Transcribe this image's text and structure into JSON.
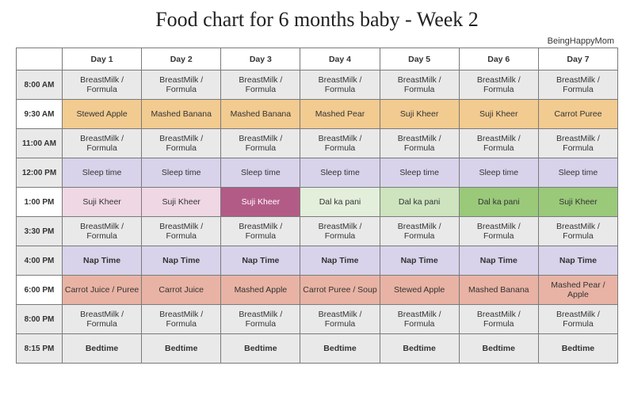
{
  "title": "Food chart for 6 months baby - Week 2",
  "credit": "BeingHappyMom",
  "columns": [
    "",
    "Day 1",
    "Day 2",
    "Day 3",
    "Day 4",
    "Day 5",
    "Day 6",
    "Day 7"
  ],
  "rows": [
    {
      "time": "8:00 AM",
      "timeClass": "time-gray",
      "cells": [
        {
          "v": "BreastMilk / Formula",
          "c": "c-gray"
        },
        {
          "v": "BreastMilk / Formula",
          "c": "c-gray"
        },
        {
          "v": "BreastMilk / Formula",
          "c": "c-gray"
        },
        {
          "v": "BreastMilk / Formula",
          "c": "c-gray"
        },
        {
          "v": "BreastMilk / Formula",
          "c": "c-gray"
        },
        {
          "v": "BreastMilk / Formula",
          "c": "c-gray"
        },
        {
          "v": "BreastMilk / Formula",
          "c": "c-gray"
        }
      ]
    },
    {
      "time": "9:30 AM",
      "timeClass": "time-white",
      "cells": [
        {
          "v": "Stewed Apple",
          "c": "c-orange"
        },
        {
          "v": "Mashed Banana",
          "c": "c-orange"
        },
        {
          "v": "Mashed Banana",
          "c": "c-orange"
        },
        {
          "v": "Mashed Pear",
          "c": "c-orange"
        },
        {
          "v": "Suji Kheer",
          "c": "c-orange"
        },
        {
          "v": "Suji Kheer",
          "c": "c-orange"
        },
        {
          "v": "Carrot Puree",
          "c": "c-orange"
        }
      ]
    },
    {
      "time": "11:00 AM",
      "timeClass": "time-gray",
      "cells": [
        {
          "v": "BreastMilk / Formula",
          "c": "c-gray"
        },
        {
          "v": "BreastMilk / Formula",
          "c": "c-gray"
        },
        {
          "v": "BreastMilk / Formula",
          "c": "c-gray"
        },
        {
          "v": "BreastMilk / Formula",
          "c": "c-gray"
        },
        {
          "v": "BreastMilk / Formula",
          "c": "c-gray"
        },
        {
          "v": "BreastMilk / Formula",
          "c": "c-gray"
        },
        {
          "v": "BreastMilk / Formula",
          "c": "c-gray"
        }
      ]
    },
    {
      "time": "12:00 PM",
      "timeClass": "time-gray",
      "cells": [
        {
          "v": "Sleep time",
          "c": "c-purple"
        },
        {
          "v": "Sleep time",
          "c": "c-purple"
        },
        {
          "v": "Sleep time",
          "c": "c-purple"
        },
        {
          "v": "Sleep time",
          "c": "c-purple"
        },
        {
          "v": "Sleep time",
          "c": "c-purple"
        },
        {
          "v": "Sleep time",
          "c": "c-purple"
        },
        {
          "v": "Sleep time",
          "c": "c-purple"
        }
      ]
    },
    {
      "time": "1:00 PM",
      "timeClass": "time-white",
      "cells": [
        {
          "v": "Suji Kheer",
          "c": "c-pink-lt"
        },
        {
          "v": "Suji Kheer",
          "c": "c-pink-lt"
        },
        {
          "v": "Suji Kheer",
          "c": "c-magenta"
        },
        {
          "v": "Dal ka pani",
          "c": "c-green-vlt"
        },
        {
          "v": "Dal ka pani",
          "c": "c-green-lt"
        },
        {
          "v": "Dal ka pani",
          "c": "c-green"
        },
        {
          "v": "Suji Kheer",
          "c": "c-green"
        }
      ]
    },
    {
      "time": "3:30 PM",
      "timeClass": "time-gray",
      "cells": [
        {
          "v": "BreastMilk / Formula",
          "c": "c-gray"
        },
        {
          "v": "BreastMilk / Formula",
          "c": "c-gray"
        },
        {
          "v": "BreastMilk / Formula",
          "c": "c-gray"
        },
        {
          "v": "BreastMilk / Formula",
          "c": "c-gray"
        },
        {
          "v": "BreastMilk / Formula",
          "c": "c-gray"
        },
        {
          "v": "BreastMilk / Formula",
          "c": "c-gray"
        },
        {
          "v": "BreastMilk / Formula",
          "c": "c-gray"
        }
      ]
    },
    {
      "time": "4:00 PM",
      "timeClass": "time-gray",
      "bold": true,
      "cells": [
        {
          "v": "Nap Time",
          "c": "c-purple",
          "b": true
        },
        {
          "v": "Nap Time",
          "c": "c-purple",
          "b": true
        },
        {
          "v": "Nap Time",
          "c": "c-purple",
          "b": true
        },
        {
          "v": "Nap Time",
          "c": "c-purple",
          "b": true
        },
        {
          "v": "Nap Time",
          "c": "c-purple",
          "b": true
        },
        {
          "v": "Nap Time",
          "c": "c-purple",
          "b": true
        },
        {
          "v": "Nap Time",
          "c": "c-purple",
          "b": true
        }
      ]
    },
    {
      "time": "6:00 PM",
      "timeClass": "time-white",
      "cells": [
        {
          "v": "Carrot Juice / Puree",
          "c": "c-salmon"
        },
        {
          "v": "Carrot Juice",
          "c": "c-salmon"
        },
        {
          "v": "Mashed Apple",
          "c": "c-salmon"
        },
        {
          "v": "Carrot Puree / Soup",
          "c": "c-salmon"
        },
        {
          "v": "Stewed Apple",
          "c": "c-salmon"
        },
        {
          "v": "Mashed Banana",
          "c": "c-salmon"
        },
        {
          "v": "Mashed Pear / Apple",
          "c": "c-salmon"
        }
      ]
    },
    {
      "time": "8:00 PM",
      "timeClass": "time-gray",
      "cells": [
        {
          "v": "BreastMilk / Formula",
          "c": "c-gray"
        },
        {
          "v": "BreastMilk / Formula",
          "c": "c-gray"
        },
        {
          "v": "BreastMilk / Formula",
          "c": "c-gray"
        },
        {
          "v": "BreastMilk / Formula",
          "c": "c-gray"
        },
        {
          "v": "BreastMilk / Formula",
          "c": "c-gray"
        },
        {
          "v": "BreastMilk / Formula",
          "c": "c-gray"
        },
        {
          "v": "BreastMilk / Formula",
          "c": "c-gray"
        }
      ]
    },
    {
      "time": "8:15 PM",
      "timeClass": "time-gray",
      "bold": true,
      "cells": [
        {
          "v": "Bedtime",
          "c": "c-gray",
          "b": true
        },
        {
          "v": "Bedtime",
          "c": "c-gray",
          "b": true
        },
        {
          "v": "Bedtime",
          "c": "c-gray",
          "b": true
        },
        {
          "v": "Bedtime",
          "c": "c-gray",
          "b": true
        },
        {
          "v": "Bedtime",
          "c": "c-gray",
          "b": true
        },
        {
          "v": "Bedtime",
          "c": "c-gray",
          "b": true
        },
        {
          "v": "Bedtime",
          "c": "c-gray",
          "b": true
        }
      ]
    }
  ]
}
